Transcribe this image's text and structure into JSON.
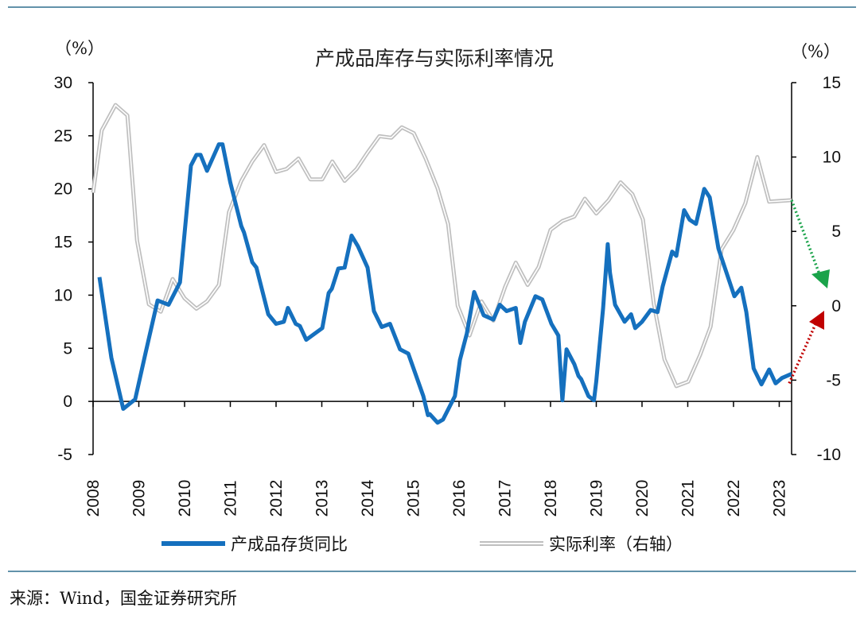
{
  "chart_data": {
    "type": "line",
    "title": "产成品库存与实际利率情况",
    "left_unit": "（%）",
    "right_unit": "（%）",
    "left_axis": {
      "ylim": [
        -5,
        30
      ],
      "ticks": [
        -5,
        0,
        5,
        10,
        15,
        20,
        25,
        30
      ]
    },
    "right_axis": {
      "ylim": [
        -10,
        15
      ],
      "ticks": [
        -10,
        -5,
        0,
        5,
        10,
        15
      ]
    },
    "x_axis": {
      "xlim": [
        2008,
        2023.27
      ],
      "ticks": [
        "2008",
        "2009",
        "2010",
        "2011",
        "2012",
        "2013",
        "2014",
        "2015",
        "2016",
        "2017",
        "2018",
        "2019",
        "2020",
        "2021",
        "2022",
        "2023"
      ]
    },
    "series": [
      {
        "name": "产成品存货同比",
        "axis": "left",
        "color": "#1570BE",
        "points": [
          [
            2008.14,
            11.7
          ],
          [
            2008.4,
            4.1
          ],
          [
            2008.66,
            -0.7
          ],
          [
            2008.92,
            0.2
          ],
          [
            2009.15,
            4.6
          ],
          [
            2009.41,
            9.5
          ],
          [
            2009.65,
            9.1
          ],
          [
            2009.9,
            11.2
          ],
          [
            2010.14,
            22.2
          ],
          [
            2010.26,
            23.2
          ],
          [
            2010.35,
            23.2
          ],
          [
            2010.49,
            21.7
          ],
          [
            2010.75,
            24.2
          ],
          [
            2010.83,
            24.2
          ],
          [
            2011.0,
            20.6
          ],
          [
            2011.24,
            16.5
          ],
          [
            2011.3,
            15.9
          ],
          [
            2011.48,
            13.1
          ],
          [
            2011.57,
            12.6
          ],
          [
            2011.83,
            8.2
          ],
          [
            2012.0,
            7.3
          ],
          [
            2012.17,
            7.5
          ],
          [
            2012.26,
            8.8
          ],
          [
            2012.43,
            7.3
          ],
          [
            2012.52,
            7.1
          ],
          [
            2012.66,
            5.8
          ],
          [
            2013.01,
            6.9
          ],
          [
            2013.15,
            10.2
          ],
          [
            2013.22,
            10.6
          ],
          [
            2013.36,
            12.5
          ],
          [
            2013.5,
            12.6
          ],
          [
            2013.65,
            15.6
          ],
          [
            2013.79,
            14.6
          ],
          [
            2014.0,
            12.6
          ],
          [
            2014.14,
            8.5
          ],
          [
            2014.31,
            7.0
          ],
          [
            2014.49,
            7.3
          ],
          [
            2014.71,
            4.9
          ],
          [
            2014.89,
            4.5
          ],
          [
            2015.22,
            0.5
          ],
          [
            2015.32,
            -1.3
          ],
          [
            2015.36,
            -1.2
          ],
          [
            2015.53,
            -2.0
          ],
          [
            2015.65,
            -1.7
          ],
          [
            2015.91,
            0.5
          ],
          [
            2016.02,
            3.9
          ],
          [
            2016.17,
            6.4
          ],
          [
            2016.33,
            10.3
          ],
          [
            2016.54,
            8.1
          ],
          [
            2016.75,
            7.7
          ],
          [
            2016.89,
            9.1
          ],
          [
            2017.04,
            8.5
          ],
          [
            2017.24,
            8.8
          ],
          [
            2017.34,
            5.5
          ],
          [
            2017.44,
            7.5
          ],
          [
            2017.67,
            9.9
          ],
          [
            2017.82,
            9.6
          ],
          [
            2018.02,
            7.3
          ],
          [
            2018.17,
            6.2
          ],
          [
            2018.26,
            0.1
          ],
          [
            2018.35,
            4.9
          ],
          [
            2018.52,
            3.5
          ],
          [
            2018.61,
            2.4
          ],
          [
            2018.67,
            2.1
          ],
          [
            2018.83,
            0.5
          ],
          [
            2018.95,
            0.1
          ],
          [
            2019.0,
            1.9
          ],
          [
            2019.15,
            8.8
          ],
          [
            2019.25,
            14.8
          ],
          [
            2019.3,
            12.1
          ],
          [
            2019.41,
            9.1
          ],
          [
            2019.62,
            7.5
          ],
          [
            2019.76,
            8.2
          ],
          [
            2019.85,
            6.9
          ],
          [
            2020.0,
            7.5
          ],
          [
            2020.19,
            8.6
          ],
          [
            2020.34,
            8.4
          ],
          [
            2020.45,
            10.8
          ],
          [
            2020.66,
            14.1
          ],
          [
            2020.75,
            13.7
          ],
          [
            2020.92,
            18.0
          ],
          [
            2021.04,
            17.1
          ],
          [
            2021.18,
            16.7
          ],
          [
            2021.36,
            20.0
          ],
          [
            2021.48,
            19.2
          ],
          [
            2021.67,
            14.4
          ],
          [
            2021.7,
            14.0
          ],
          [
            2022.02,
            9.9
          ],
          [
            2022.17,
            10.7
          ],
          [
            2022.28,
            8.4
          ],
          [
            2022.44,
            3.1
          ],
          [
            2022.61,
            1.6
          ],
          [
            2022.78,
            3.0
          ],
          [
            2022.92,
            1.7
          ],
          [
            2023.06,
            2.2
          ],
          [
            2023.27,
            2.6
          ]
        ]
      },
      {
        "name": "实际利率（右轴）",
        "axis": "right",
        "color": "#BFBFBF",
        "points": [
          [
            2008.0,
            7.6
          ],
          [
            2008.19,
            11.8
          ],
          [
            2008.49,
            13.5
          ],
          [
            2008.75,
            12.8
          ],
          [
            2008.96,
            4.4
          ],
          [
            2009.22,
            0.1
          ],
          [
            2009.48,
            -0.4
          ],
          [
            2009.74,
            1.8
          ],
          [
            2010.0,
            0.5
          ],
          [
            2010.26,
            -0.2
          ],
          [
            2010.49,
            0.3
          ],
          [
            2010.75,
            1.4
          ],
          [
            2010.97,
            6.3
          ],
          [
            2011.24,
            8.4
          ],
          [
            2011.48,
            9.7
          ],
          [
            2011.74,
            10.8
          ],
          [
            2012.0,
            9.0
          ],
          [
            2012.23,
            9.2
          ],
          [
            2012.49,
            9.9
          ],
          [
            2012.75,
            8.5
          ],
          [
            2013.01,
            8.5
          ],
          [
            2013.23,
            9.7
          ],
          [
            2013.5,
            8.4
          ],
          [
            2013.76,
            9.2
          ],
          [
            2014.0,
            10.3
          ],
          [
            2014.26,
            11.4
          ],
          [
            2014.52,
            11.3
          ],
          [
            2014.75,
            12.0
          ],
          [
            2015.01,
            11.6
          ],
          [
            2015.27,
            9.9
          ],
          [
            2015.53,
            7.9
          ],
          [
            2015.76,
            5.5
          ],
          [
            2015.97,
            0.0
          ],
          [
            2016.23,
            -2.0
          ],
          [
            2016.49,
            0.3
          ],
          [
            2016.75,
            -1.0
          ],
          [
            2017.01,
            1.3
          ],
          [
            2017.24,
            2.9
          ],
          [
            2017.5,
            1.4
          ],
          [
            2017.74,
            2.6
          ],
          [
            2018.0,
            5.1
          ],
          [
            2018.26,
            5.7
          ],
          [
            2018.52,
            6.0
          ],
          [
            2018.75,
            7.2
          ],
          [
            2019.0,
            6.2
          ],
          [
            2019.27,
            7.1
          ],
          [
            2019.53,
            8.3
          ],
          [
            2019.79,
            7.5
          ],
          [
            2020.02,
            5.8
          ],
          [
            2020.26,
            0.1
          ],
          [
            2020.49,
            -3.6
          ],
          [
            2020.75,
            -5.4
          ],
          [
            2021.01,
            -5.1
          ],
          [
            2021.27,
            -3.3
          ],
          [
            2021.5,
            -1.4
          ],
          [
            2021.74,
            3.8
          ],
          [
            2022.0,
            5.1
          ],
          [
            2022.26,
            6.9
          ],
          [
            2022.52,
            10.0
          ],
          [
            2022.78,
            7.0
          ],
          [
            2023.27,
            7.1
          ]
        ]
      }
    ],
    "annotations": [
      {
        "type": "arrow",
        "color": "#1AA34A",
        "direction": "down",
        "series": "实际利率（右轴）"
      },
      {
        "type": "arrow",
        "color": "#C00000",
        "direction": "up",
        "series": "产成品存货同比"
      }
    ],
    "legend_position": "bottom",
    "grid": false
  },
  "source": "来源：Wind，国金证券研究所",
  "colors": {
    "rule": "#2F6E8E"
  }
}
